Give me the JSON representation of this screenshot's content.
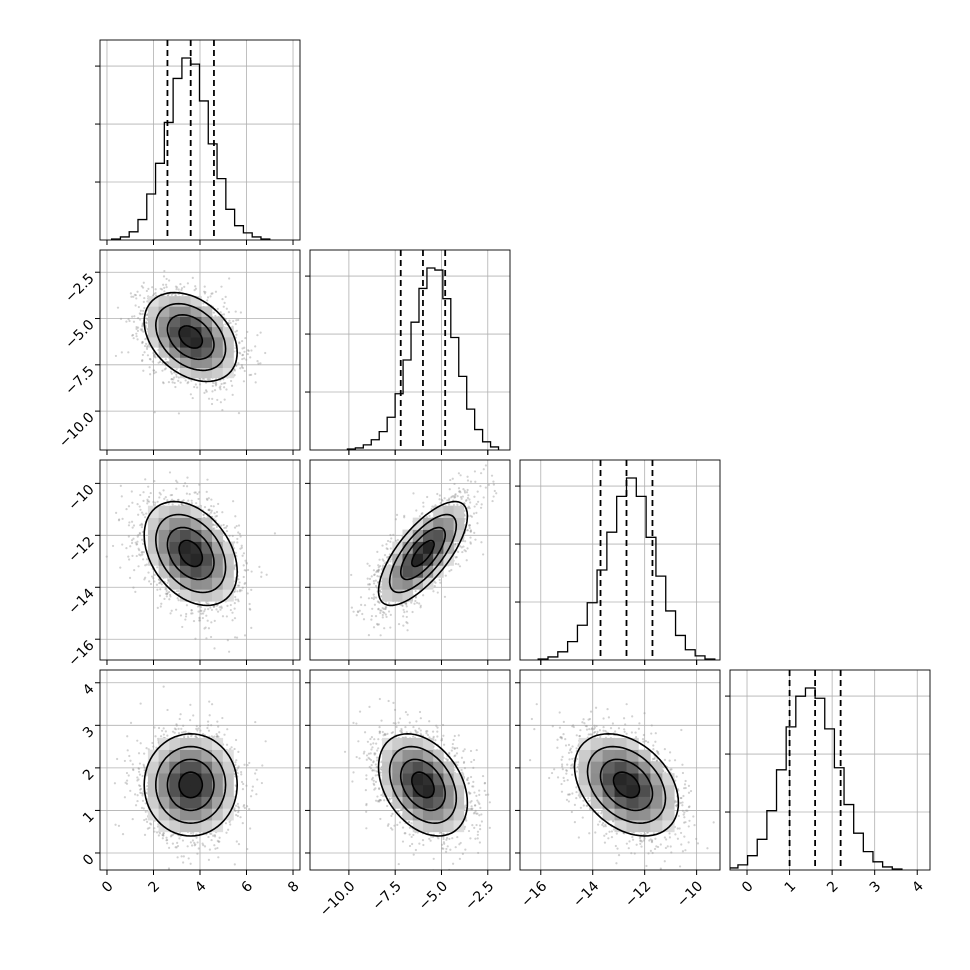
{
  "chart_data": {
    "type": "corner",
    "description_free": true,
    "grid": true,
    "parameters": [
      {
        "range": [
          -0.3,
          8.3
        ],
        "ticks": [
          0,
          2,
          4,
          6,
          8
        ],
        "tick_labels": [
          "0",
          "2",
          "4",
          "6",
          "8"
        ],
        "quantiles": [
          2.6,
          3.6,
          4.6
        ],
        "hist_counts": [
          1,
          3,
          8,
          20,
          45,
          75,
          115,
          158,
          178,
          172,
          136,
          94,
          60,
          30,
          14,
          7,
          3,
          1
        ]
      },
      {
        "range": [
          -12.1,
          -1.3
        ],
        "ticks": [
          -10.0,
          -7.5,
          -5.0,
          -2.5
        ],
        "tick_labels": [
          "−10.0",
          "−7.5",
          "−5.0",
          "−2.5"
        ],
        "quantiles": [
          -7.2,
          -6.0,
          -4.8
        ],
        "hist_counts": [
          1,
          2,
          5,
          10,
          18,
          32,
          55,
          88,
          125,
          158,
          178,
          176,
          148,
          110,
          72,
          40,
          20,
          8,
          3
        ]
      },
      {
        "range": [
          -16.8,
          -9.1
        ],
        "ticks": [
          -16,
          -14,
          -12,
          -10
        ],
        "tick_labels": [
          "−16",
          "−14",
          "−12",
          "−10"
        ],
        "quantiles": [
          -13.7,
          -12.7,
          -11.7
        ],
        "hist_counts": [
          1,
          3,
          8,
          18,
          34,
          56,
          88,
          125,
          160,
          178,
          160,
          120,
          82,
          48,
          24,
          10,
          4,
          1
        ]
      },
      {
        "range": [
          -0.4,
          4.3
        ],
        "ticks": [
          0,
          1,
          2,
          3,
          4
        ],
        "tick_labels": [
          "0",
          "1",
          "2",
          "3",
          "4"
        ],
        "quantiles": [
          1.0,
          1.6,
          2.2
        ],
        "hist_counts": [
          2,
          5,
          14,
          30,
          58,
          98,
          140,
          170,
          178,
          168,
          138,
          100,
          64,
          36,
          18,
          8,
          3,
          1
        ]
      }
    ],
    "pairs": [
      {
        "x": 0,
        "y": 1,
        "center": [
          3.6,
          -6.0
        ],
        "corr": -0.35
      },
      {
        "x": 0,
        "y": 2,
        "center": [
          3.6,
          -12.7
        ],
        "corr": -0.35
      },
      {
        "x": 1,
        "y": 2,
        "center": [
          -6.0,
          -12.7
        ],
        "corr": 0.72
      },
      {
        "x": 0,
        "y": 3,
        "center": [
          3.6,
          1.6
        ],
        "corr": 0.0
      },
      {
        "x": 1,
        "y": 3,
        "center": [
          -6.0,
          1.6
        ],
        "corr": -0.35
      },
      {
        "x": 2,
        "y": 3,
        "center": [
          -12.7,
          1.6
        ],
        "corr": -0.35
      }
    ],
    "contour_levels_sigma": [
      0.5,
      1.0,
      1.5,
      2.0
    ]
  }
}
